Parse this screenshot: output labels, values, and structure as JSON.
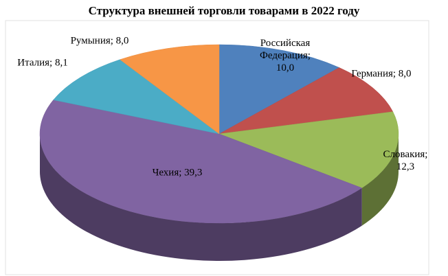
{
  "chart_data": {
    "type": "pie3d",
    "title": "Структура внешней торговли товарами в 2022 году",
    "values": [
      10.0,
      8.0,
      12.3,
      39.3,
      8.1,
      8.0
    ],
    "value_labels": [
      "Российская\nФедерация;\n10,0",
      "Германия; 8,0",
      "Словакия;\n12,3",
      "Чехия; 39,3",
      "Италия; 8,1",
      "Румыния; 8,0"
    ],
    "colors": [
      "#4f81bd",
      "#c0504d",
      "#9bbb59",
      "#8064a2",
      "#4bacc6",
      "#f79646"
    ]
  }
}
